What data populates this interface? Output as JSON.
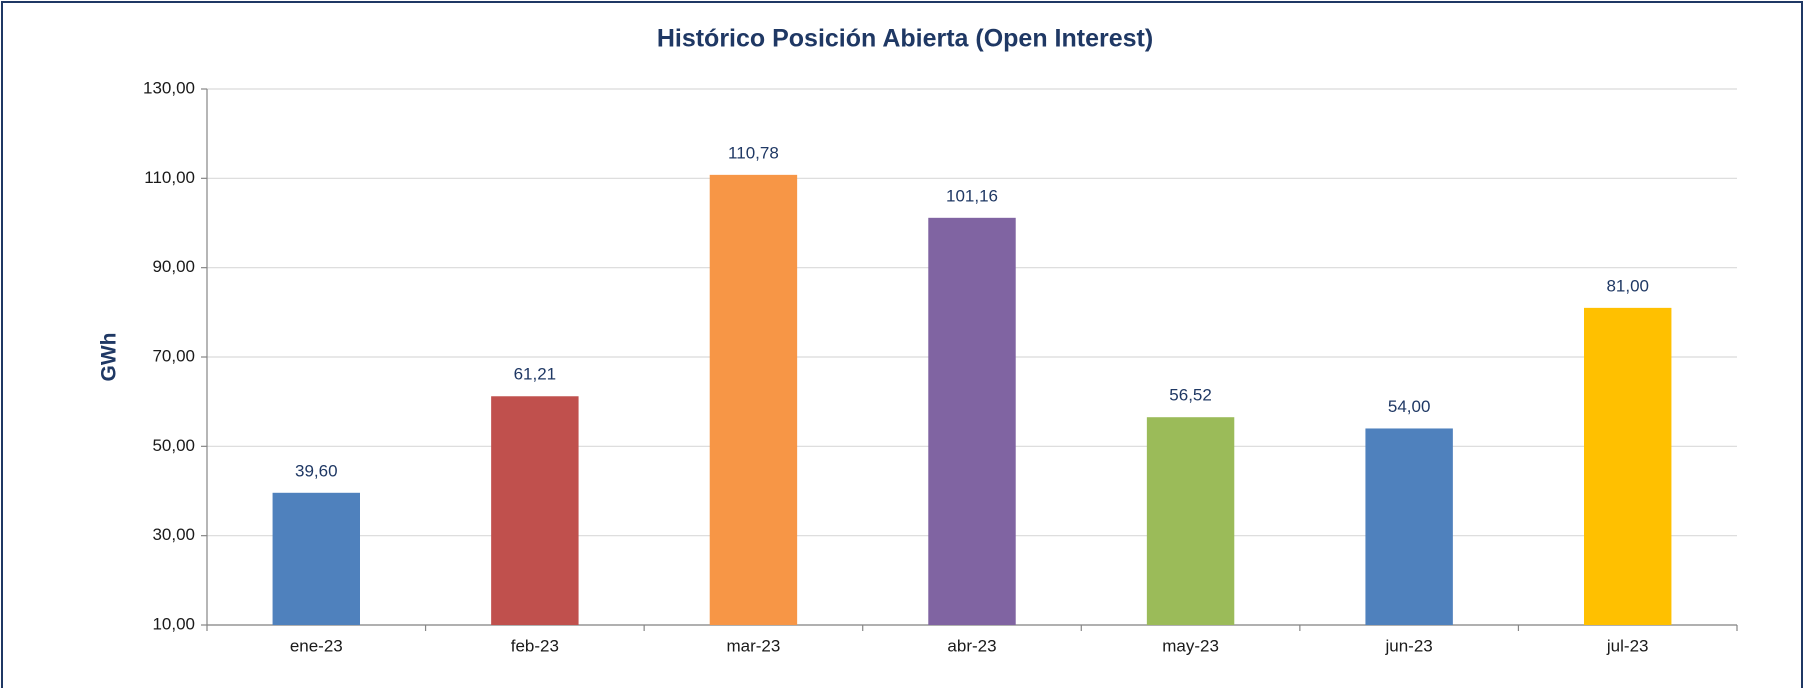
{
  "chart_data": {
    "type": "bar",
    "title": "Histórico Posición Abierta (Open Interest)",
    "y_label": "GWh",
    "categories": [
      "ene-23",
      "feb-23",
      "mar-23",
      "abr-23",
      "may-23",
      "jun-23",
      "jul-23"
    ],
    "values": [
      39.6,
      61.21,
      110.78,
      101.16,
      56.52,
      54.0,
      81.0
    ],
    "value_labels": [
      "39,60",
      "61,21",
      "110,78",
      "101,16",
      "56,52",
      "54,00",
      "81,00"
    ],
    "colors": [
      "#4f81bd",
      "#c0504d",
      "#f79646",
      "#8064a2",
      "#9bbb59",
      "#4f81bd",
      "#ffc000"
    ],
    "ylim": [
      10,
      130
    ],
    "yticks": [
      {
        "value": 10,
        "label": "10,00"
      },
      {
        "value": 30,
        "label": "30,00"
      },
      {
        "value": 50,
        "label": "50,00"
      },
      {
        "value": 70,
        "label": "70,00"
      },
      {
        "value": 90,
        "label": "90,00"
      },
      {
        "value": 110,
        "label": "110,00"
      },
      {
        "value": 130,
        "label": "130,00"
      }
    ],
    "grid": true
  }
}
